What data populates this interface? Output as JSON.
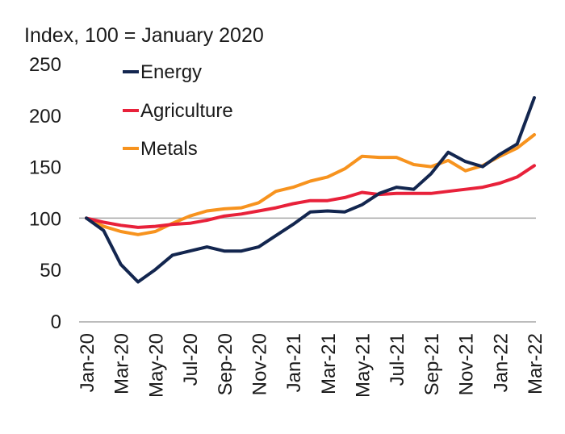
{
  "chart_data": {
    "type": "line",
    "title": "",
    "ylabel": "Index, 100 = January 2020",
    "xlabel": "",
    "ylim": [
      0,
      250
    ],
    "yticks": [
      0,
      50,
      100,
      150,
      200,
      250
    ],
    "reference_line": 100,
    "x": [
      "Jan-20",
      "Feb-20",
      "Mar-20",
      "Apr-20",
      "May-20",
      "Jun-20",
      "Jul-20",
      "Aug-20",
      "Sep-20",
      "Oct-20",
      "Nov-20",
      "Dec-20",
      "Jan-21",
      "Feb-21",
      "Mar-21",
      "Apr-21",
      "May-21",
      "Jun-21",
      "Jul-21",
      "Aug-21",
      "Sep-21",
      "Oct-21",
      "Nov-21",
      "Dec-21",
      "Jan-22",
      "Feb-22",
      "Mar-22"
    ],
    "tick_labels": [
      "Jan-20",
      "Mar-20",
      "May-20",
      "Jul-20",
      "Sep-20",
      "Nov-20",
      "Jan-21",
      "Mar-21",
      "May-21",
      "Jul-21",
      "Sep-21",
      "Nov-21",
      "Jan-22",
      "Mar-22"
    ],
    "legend_position": "top-left",
    "series": [
      {
        "name": "Energy",
        "color": "#13264f",
        "values": [
          100,
          88,
          55,
          38,
          50,
          64,
          68,
          72,
          68,
          68,
          72,
          83,
          94,
          106,
          107,
          106,
          113,
          124,
          130,
          128,
          143,
          164,
          155,
          150,
          162,
          172,
          217
        ]
      },
      {
        "name": "Agriculture",
        "color": "#e8213a",
        "values": [
          100,
          96,
          93,
          91,
          92,
          94,
          95,
          98,
          102,
          104,
          107,
          110,
          114,
          117,
          117,
          120,
          125,
          123,
          124,
          124,
          124,
          126,
          128,
          130,
          134,
          140,
          151
        ]
      },
      {
        "name": "Metals",
        "color": "#f7931e",
        "values": [
          100,
          92,
          87,
          84,
          87,
          95,
          102,
          107,
          109,
          110,
          115,
          126,
          130,
          136,
          140,
          148,
          160,
          159,
          159,
          152,
          150,
          156,
          146,
          151,
          160,
          168,
          181
        ]
      }
    ]
  }
}
